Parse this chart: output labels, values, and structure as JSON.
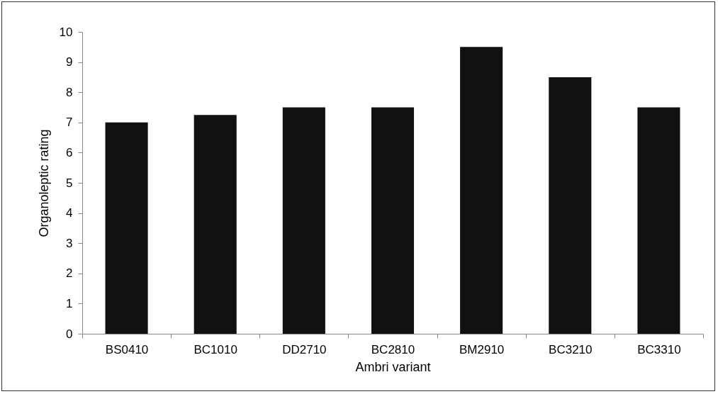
{
  "chart_data": {
    "type": "bar",
    "xlabel": "Ambri variant",
    "ylabel": "Organoleptic rating",
    "categories": [
      "BS0410",
      "BC1010",
      "DD2710",
      "BC2810",
      "BM2910",
      "BC3210",
      "BC3310"
    ],
    "values": [
      7,
      7.25,
      7.5,
      7.5,
      9.5,
      8.5,
      7.5
    ],
    "color": "#111111",
    "ylim": [
      0,
      10
    ],
    "yticks": [
      0,
      1,
      2,
      3,
      4,
      5,
      6,
      7,
      8,
      9,
      10
    ]
  }
}
